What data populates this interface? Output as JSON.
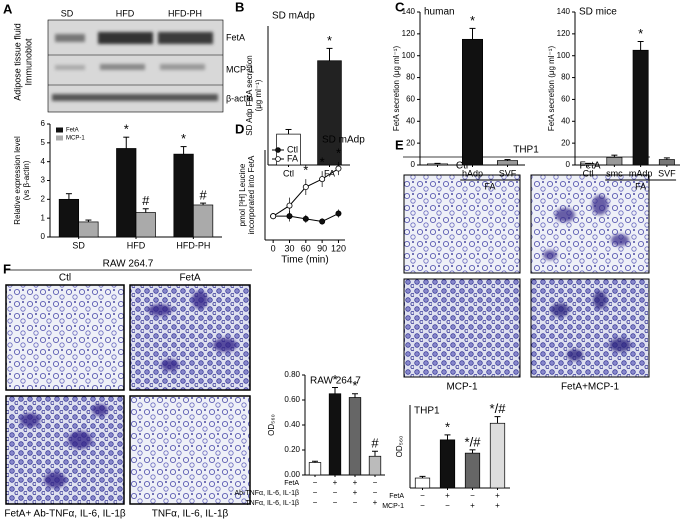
{
  "panel_labels": [
    "A",
    "B",
    "C",
    "D",
    "E",
    "F"
  ],
  "blot": {
    "lanes": [
      "SD",
      "HFD",
      "HFD-PH"
    ],
    "rows": [
      "FetA",
      "MCP-1",
      "β-actin"
    ],
    "side_label": [
      "Adipose tissue fluid",
      "Immunoblot"
    ]
  },
  "micrographs": {
    "E": {
      "title": "THP1",
      "captions": [
        "Ctl",
        "FetA",
        "MCP-1",
        "FetA+MCP-1"
      ]
    },
    "F": {
      "title": "RAW 264.7",
      "captions": [
        "Ctl",
        "FetA",
        "FetA+ Ab-TNFα, IL-6, IL-1β",
        "TNFα, IL-6, IL-1β"
      ]
    }
  },
  "chart_data": [
    {
      "type": "bar",
      "ylabel": [
        "Relative expression level",
        "(vs β-actin)"
      ],
      "categories": [
        "SD",
        "HFD",
        "HFD-PH"
      ],
      "ylim": [
        0,
        6
      ],
      "yticks": [
        0,
        1,
        2,
        3,
        4,
        5,
        6
      ],
      "series": [
        {
          "name": "FetA",
          "color": "#111111",
          "values": [
            2.0,
            4.7,
            4.4
          ],
          "errors": [
            0.3,
            0.6,
            0.4
          ],
          "annotations": [
            null,
            "*",
            "*"
          ]
        },
        {
          "name": "MCP-1",
          "color": "#aaaaaa",
          "values": [
            0.8,
            1.3,
            1.7
          ],
          "errors": [
            0.1,
            0.2,
            0.1
          ],
          "annotations": [
            null,
            "#",
            "#"
          ]
        }
      ]
    },
    {
      "type": "bar",
      "title": "SD mAdp",
      "ylabel": [
        "SD Adp FetA secretion",
        "(μg ml⁻¹)"
      ],
      "categories": [
        "Ctl",
        "FA"
      ],
      "ylim": [
        0,
        180
      ],
      "series": [
        {
          "colors": [
            "#ffffff",
            "#222222"
          ],
          "values": [
            40,
            135
          ],
          "errors": [
            6,
            16
          ],
          "annotations": [
            null,
            "*"
          ]
        }
      ]
    },
    {
      "type": "bar",
      "title": "human",
      "ylabel": [
        "FetA secretion (μg ml⁻¹)"
      ],
      "categories": [
        null,
        "hAdp",
        "SVF"
      ],
      "group_label": "FA",
      "ylim": [
        0,
        140
      ],
      "yticks": [
        0,
        20,
        40,
        60,
        80,
        100,
        120,
        140
      ],
      "series": [
        {
          "colors": [
            "#ffffff",
            "#111111",
            "#999999"
          ],
          "values": [
            1,
            115,
            4
          ],
          "errors": [
            0.5,
            10,
            1
          ],
          "annotations": [
            null,
            "*",
            null
          ]
        }
      ]
    },
    {
      "type": "bar",
      "title": "SD mice",
      "ylabel": [
        "FetA secretion (μg ml⁻¹)"
      ],
      "categories": [
        "Ctl",
        "smc",
        "mAdp",
        "SVF"
      ],
      "group_label": "FA",
      "ylim": [
        0,
        140
      ],
      "yticks": [
        0,
        20,
        40,
        60,
        80,
        100,
        120,
        140
      ],
      "series": [
        {
          "colors": [
            "#ffffff",
            "#999999",
            "#111111",
            "#777777"
          ],
          "values": [
            1,
            7,
            105,
            5
          ],
          "errors": [
            0.5,
            2,
            8,
            1.5
          ],
          "annotations": [
            null,
            null,
            "*",
            null
          ]
        }
      ]
    },
    {
      "type": "line",
      "title": "SD mAdp",
      "xlabel": "Time (min)",
      "ylabel": [
        "pmol [³H] Leucine",
        "incorporated into FetA"
      ],
      "x": [
        0,
        30,
        60,
        90,
        120
      ],
      "xlim": [
        -15,
        132
      ],
      "xticks": [
        0,
        30,
        60,
        90,
        120
      ],
      "ylim": [
        0.6,
        4
      ],
      "annotations": [
        null,
        null,
        "*",
        "*",
        "*"
      ],
      "series": [
        {
          "name": "Ctl",
          "color": "#111111",
          "values": [
            1.5,
            1.5,
            1.4,
            1.3,
            1.6
          ],
          "errors": [
            0.12,
            0.2,
            0.15,
            0.12,
            0.15
          ]
        },
        {
          "name": "FA",
          "color": "#ffffff",
          "values": [
            1.5,
            1.9,
            2.6,
            2.9,
            3.3
          ],
          "errors": [
            0.12,
            0.3,
            0.3,
            0.3,
            0.25
          ]
        }
      ]
    },
    {
      "type": "bar",
      "title": "THP1",
      "ylabel": [
        "OD₅₆₀"
      ],
      "categories": [
        null,
        null,
        null,
        null
      ],
      "ylim": [
        0,
        0.5
      ],
      "series": [
        {
          "colors": [
            "#ffffff",
            "#111111",
            "#666666",
            "#dddddd"
          ],
          "values": [
            0.06,
            0.29,
            0.21,
            0.39
          ],
          "errors": [
            0.01,
            0.03,
            0.02,
            0.04
          ],
          "annotations": [
            null,
            "*",
            "*/#",
            "*/#"
          ]
        }
      ],
      "conditions": [
        {
          "label": "FetA",
          "values": [
            "−",
            "+",
            "−",
            "+"
          ]
        },
        {
          "label": "MCP-1",
          "values": [
            "−",
            "−",
            "+",
            "+"
          ]
        }
      ]
    },
    {
      "type": "bar",
      "title": "RAW 264.7",
      "ylabel": [
        "OD₅₆₀"
      ],
      "categories": [
        null,
        null,
        null,
        null
      ],
      "ylim": [
        0,
        0.8
      ],
      "yticks": [
        {
          "value": 0,
          "label": "0.00"
        },
        {
          "value": 0.2,
          "label": "0.20"
        },
        {
          "value": 0.4,
          "label": "0.40"
        },
        {
          "value": 0.6,
          "label": "0.60"
        },
        {
          "value": 0.8,
          "label": "0.80"
        }
      ],
      "series": [
        {
          "colors": [
            "#ffffff",
            "#111111",
            "#666666",
            "#bbbbbb"
          ],
          "values": [
            0.1,
            0.65,
            0.62,
            0.15
          ],
          "errors": [
            0.01,
            0.05,
            0.03,
            0.04
          ],
          "annotations": [
            null,
            "*",
            "*",
            "#"
          ]
        }
      ],
      "conditions": [
        {
          "label": "FetA",
          "values": [
            "−",
            "+",
            "+",
            "−"
          ]
        },
        {
          "label": "Ab-TNFα, IL-6, IL-1β",
          "values": [
            "−",
            "−",
            "+",
            "−"
          ]
        },
        {
          "label": "TNFα, IL-6, IL-1β",
          "values": [
            "−",
            "−",
            "−",
            "+"
          ]
        }
      ]
    }
  ]
}
